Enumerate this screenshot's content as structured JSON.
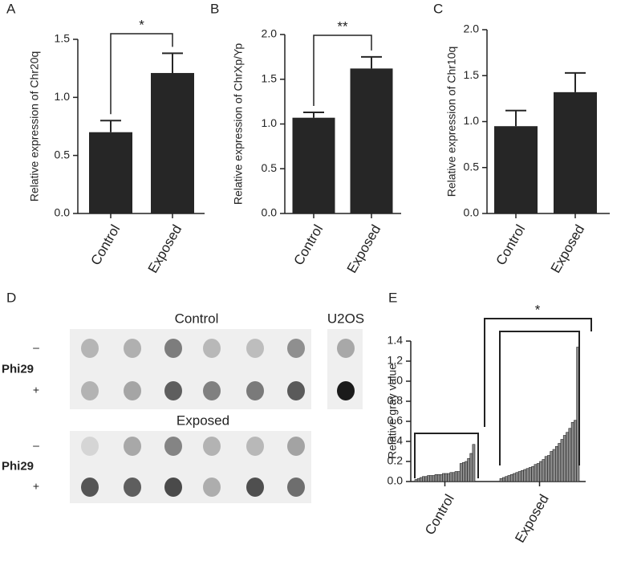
{
  "chart_data": [
    {
      "type": "bar",
      "panel_label": "A",
      "ylabel": "Relative expression of Chr20q",
      "categories": [
        "Control",
        "Exposed"
      ],
      "values": [
        0.7,
        1.21
      ],
      "errors": [
        0.1,
        0.17
      ],
      "color": "#262626",
      "ylim": [
        0,
        1.5
      ],
      "yticks": [
        {
          "value": 0,
          "label": "0.0"
        },
        {
          "value": 0.5,
          "label": "0.5"
        },
        {
          "value": 1,
          "label": "1.0"
        },
        {
          "value": 1.5,
          "label": "1.5"
        }
      ],
      "annotation": "*"
    },
    {
      "type": "bar",
      "panel_label": "B",
      "ylabel": "Relative expression of ChrXp/Yp",
      "categories": [
        "Control",
        "Exposed"
      ],
      "values": [
        1.07,
        1.62
      ],
      "errors": [
        0.06,
        0.13
      ],
      "color": "#262626",
      "ylim": [
        0,
        2
      ],
      "yticks": [
        {
          "value": 0,
          "label": "0.0"
        },
        {
          "value": 0.5,
          "label": "0.5"
        },
        {
          "value": 1,
          "label": "1.0"
        },
        {
          "value": 1.5,
          "label": "1.5"
        },
        {
          "value": 2,
          "label": "2.0"
        }
      ],
      "annotation": "**"
    },
    {
      "type": "bar",
      "panel_label": "C",
      "ylabel": "Relative expression of Chr10q",
      "categories": [
        "Control",
        "Exposed"
      ],
      "values": [
        0.95,
        1.32
      ],
      "errors": [
        0.17,
        0.21
      ],
      "color": "#262626",
      "ylim": [
        0,
        2
      ],
      "yticks": [
        {
          "value": 0,
          "label": "0.0"
        },
        {
          "value": 0.5,
          "label": "0.5"
        },
        {
          "value": 1,
          "label": "1.0"
        },
        {
          "value": 1.5,
          "label": "1.5"
        },
        {
          "value": 2,
          "label": "2.0"
        }
      ]
    },
    {
      "type": "groupbar",
      "panel_label": "E",
      "ylabel": "Relative gray value",
      "categories": [
        "Control",
        "Exposed"
      ],
      "values": [
        [
          0.02,
          0.03,
          0.04,
          0.05,
          0.05,
          0.06,
          0.06,
          0.06,
          0.07,
          0.07,
          0.07,
          0.08,
          0.08,
          0.08,
          0.09,
          0.09,
          0.1,
          0.1,
          0.18,
          0.19,
          0.2,
          0.23,
          0.28,
          0.37
        ],
        [
          0.03,
          0.04,
          0.05,
          0.06,
          0.07,
          0.08,
          0.09,
          0.1,
          0.11,
          0.12,
          0.13,
          0.14,
          0.15,
          0.17,
          0.18,
          0.2,
          0.22,
          0.25,
          0.26,
          0.3,
          0.32,
          0.35,
          0.38,
          0.42,
          0.46,
          0.49,
          0.53,
          0.59,
          0.61,
          1.34
        ]
      ],
      "color": "#8a8a8a",
      "ylim": [
        0,
        1.4
      ],
      "yticks": [
        {
          "value": 0,
          "label": "0.0"
        },
        {
          "value": 0.2,
          "label": "0.2"
        },
        {
          "value": 0.4,
          "label": "0.4"
        },
        {
          "value": 0.6,
          "label": "0.6"
        },
        {
          "value": 0.8,
          "label": "0.8"
        },
        {
          "value": 1,
          "label": "1.0"
        },
        {
          "value": 1.2,
          "label": "1.2"
        },
        {
          "value": 1.4,
          "label": "1.4"
        }
      ],
      "annotation": "*"
    }
  ],
  "blot": {
    "panel_label": "D",
    "row_title": "Phi29",
    "row_labels": [
      "–",
      "+"
    ],
    "control": {
      "title": "Control",
      "colors": [
        [
          "#b5b5b5",
          "#b0b0b0",
          "#7d7d7d",
          "#b8b8b8",
          "#bdbdbd",
          "#8f8f8f"
        ],
        [
          "#b3b3b3",
          "#a5a5a5",
          "#5e5e5e",
          "#808080",
          "#7a7a7a",
          "#5a5a5a"
        ]
      ]
    },
    "u2os": {
      "title": "U2OS",
      "colors": [
        [
          "#a8a8a8"
        ],
        [
          "#1a1a1a"
        ]
      ]
    },
    "exposed": {
      "title": "Exposed",
      "colors": [
        [
          "#d5d5d5",
          "#a8a8a8",
          "#848484",
          "#b3b3b3",
          "#b8b8b8",
          "#a3a3a3"
        ],
        [
          "#555555",
          "#5e5e5e",
          "#4a4a4a",
          "#adadad",
          "#4f4f4f",
          "#6e6e6e"
        ]
      ]
    }
  }
}
